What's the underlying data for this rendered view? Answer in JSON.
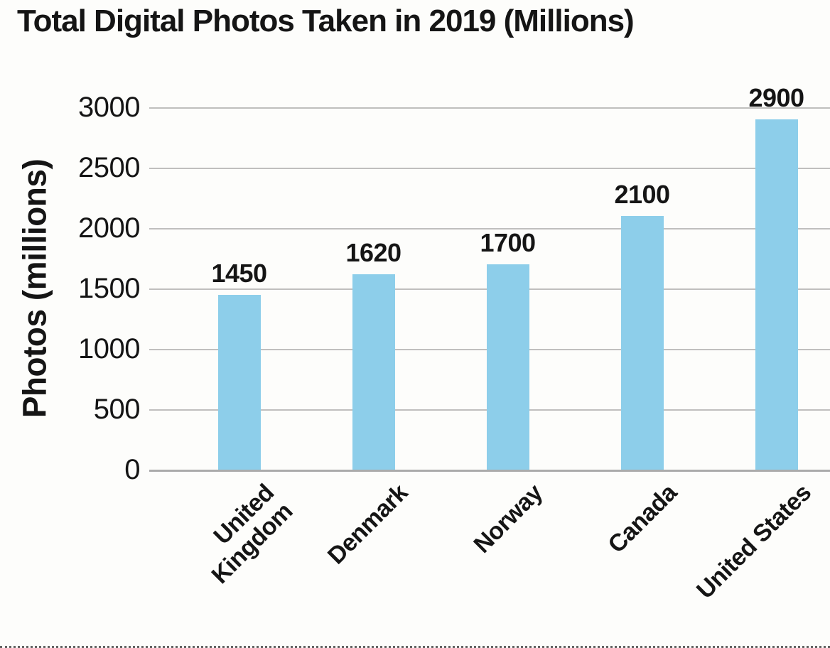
{
  "chart_data": {
    "type": "bar",
    "title": "Total Digital Photos Taken in 2019 (Millions)",
    "xlabel": "",
    "ylabel": "Photos (millions)",
    "categories": [
      "United\nKingdom",
      "Denmark",
      "Norway",
      "Canada",
      "United States"
    ],
    "values": [
      1450,
      1620,
      1700,
      2100,
      2900
    ],
    "value_labels": [
      "1450",
      "1620",
      "1700",
      "2100",
      "2900"
    ],
    "y_ticks": [
      0,
      500,
      1000,
      1500,
      2000,
      2500,
      3000
    ],
    "ylim": [
      0,
      3000
    ],
    "grid": true,
    "legend_position": "none",
    "bar_color": "#8DCEEA",
    "gridline_color": "#c0bfbe",
    "baseline_color": "#ababab",
    "text_color": "#151515",
    "background_color": "#fdfdfb"
  }
}
